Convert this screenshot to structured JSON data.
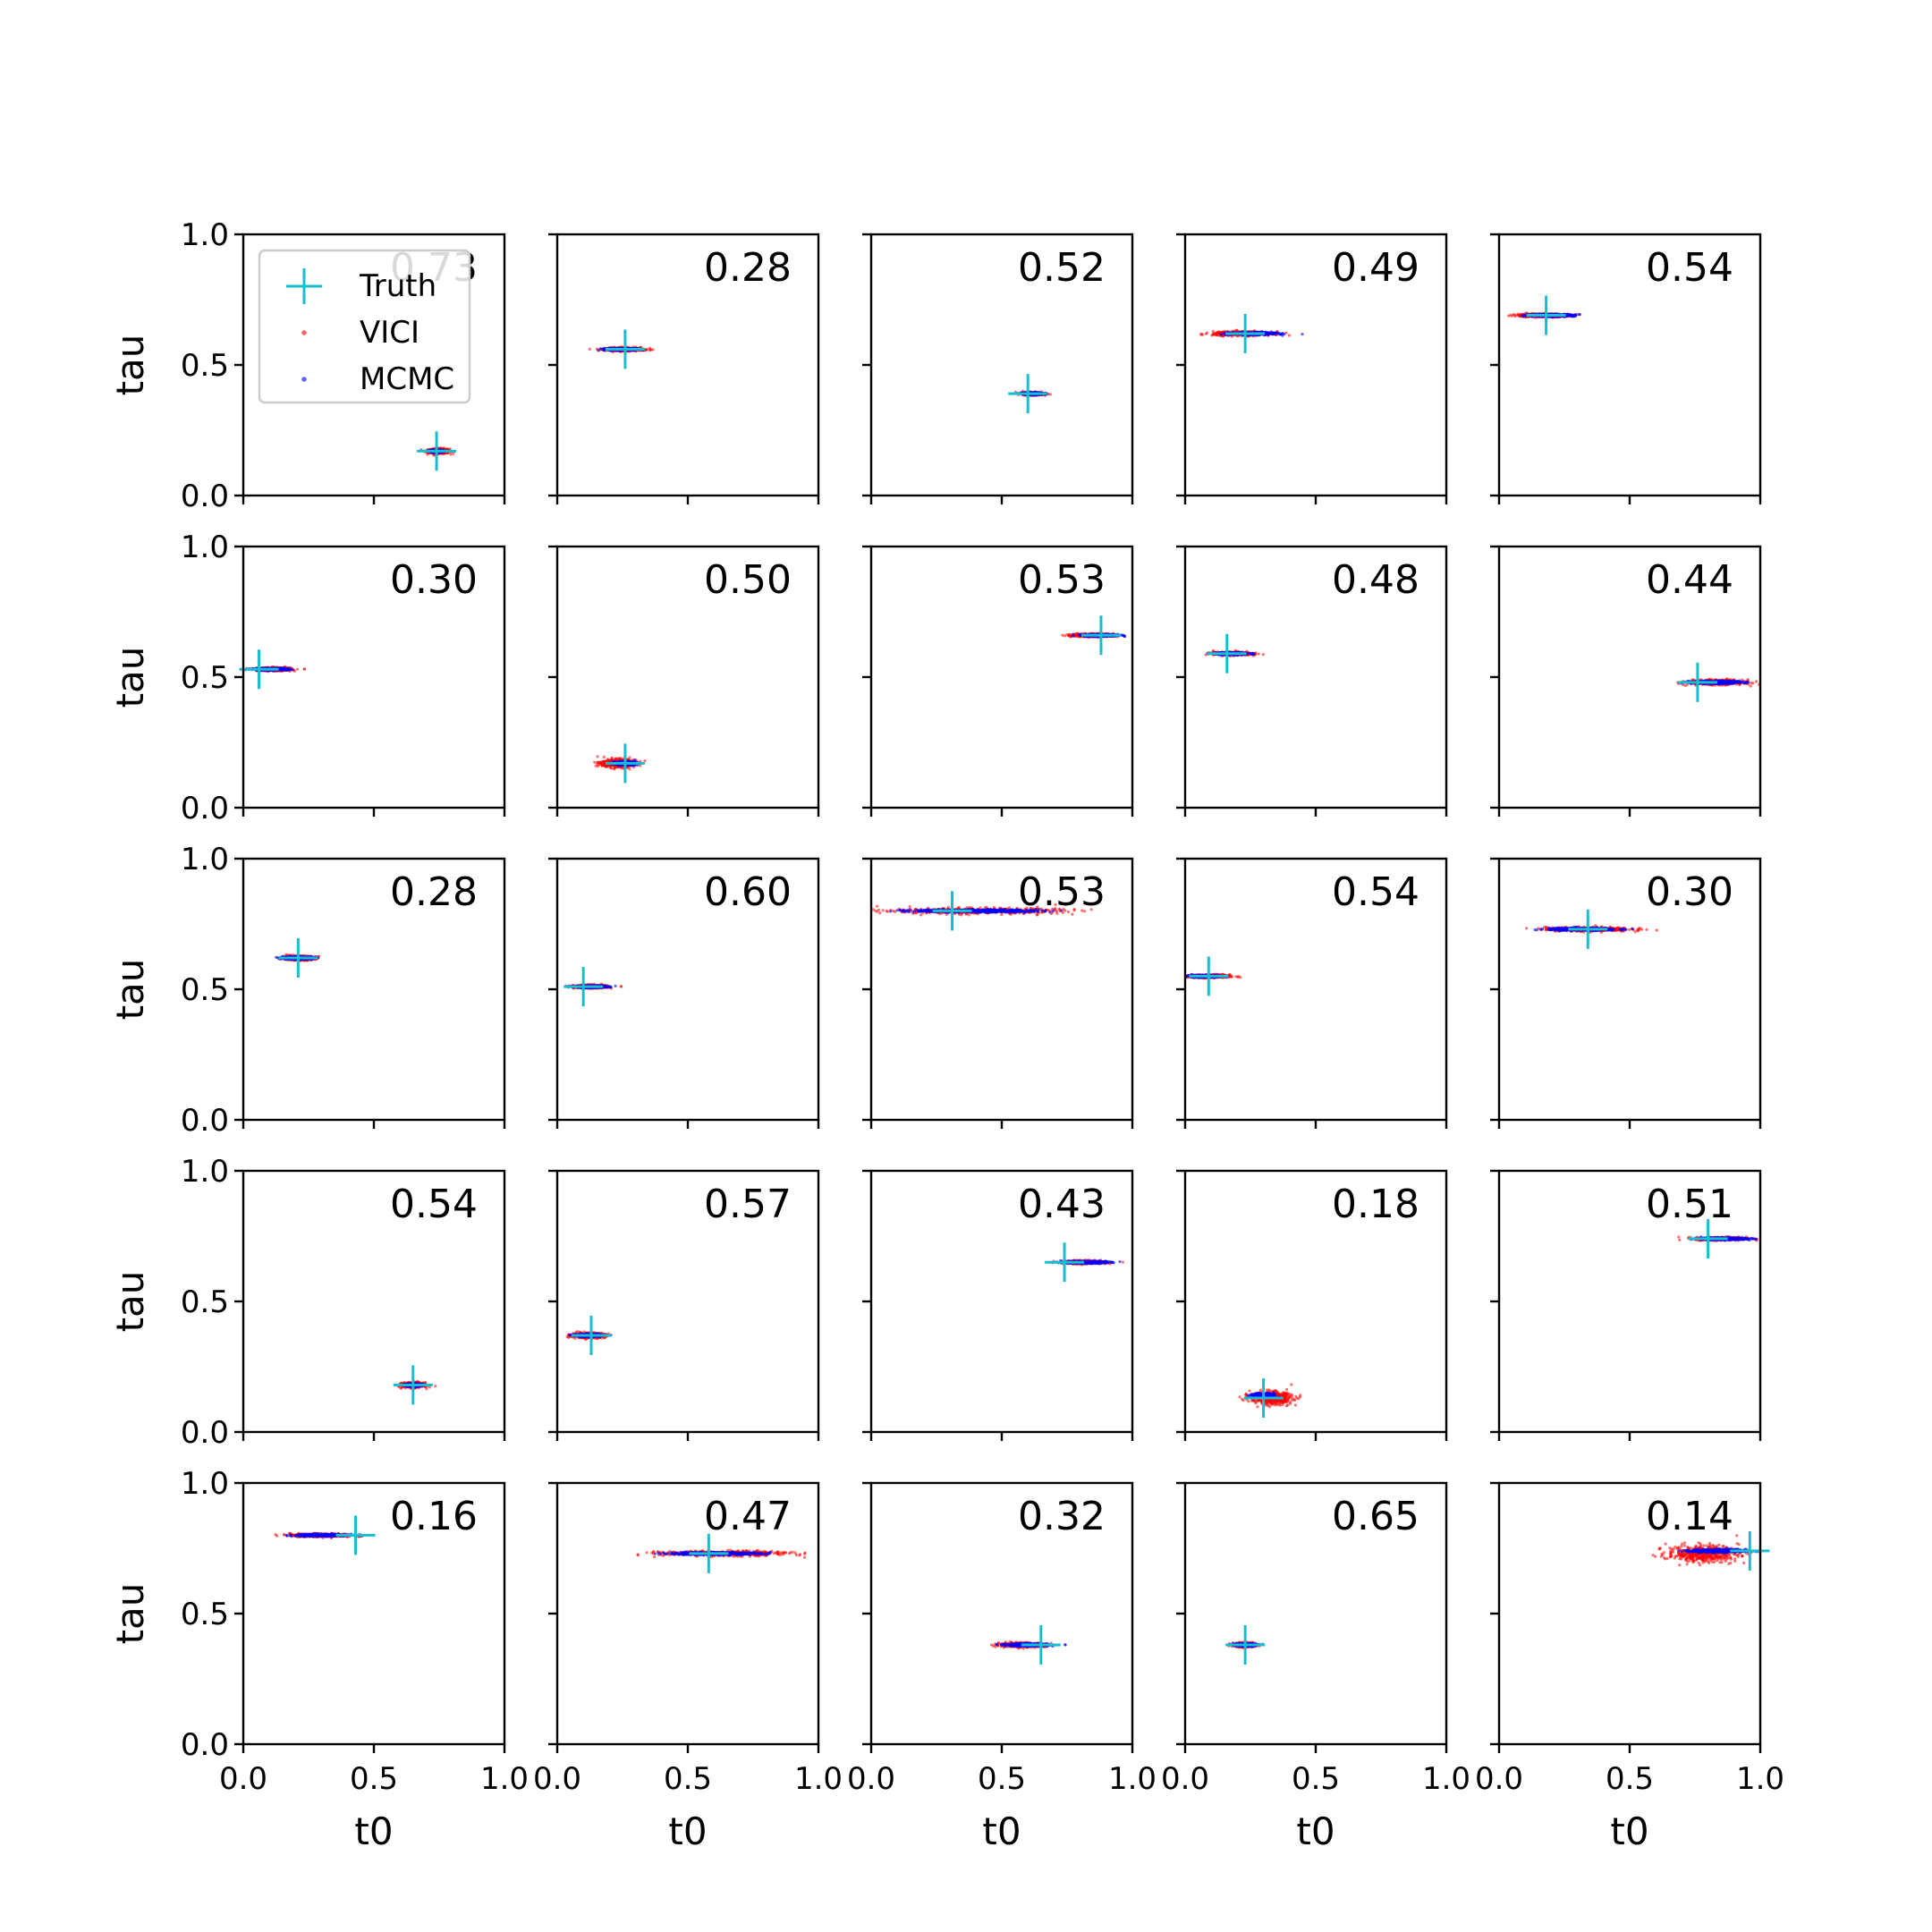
{
  "chart_data": {
    "type": "scatter",
    "layout": {
      "rows": 5,
      "cols": 5
    },
    "xlabel": "t0",
    "ylabel": "tau",
    "xlim": [
      0,
      1
    ],
    "ylim": [
      0,
      1
    ],
    "x_ticks": [
      "0.0",
      "0.5",
      "1.0"
    ],
    "y_ticks": [
      "0.0",
      "0.5",
      "1.0"
    ],
    "x_tick_values": [
      0,
      0.5,
      1
    ],
    "y_tick_values": [
      0,
      0.5,
      1
    ],
    "grid": false,
    "legend": {
      "placement": "upper-left",
      "panel": 0,
      "entries": [
        {
          "label": "Truth",
          "marker": "plus",
          "color": "#17becf"
        },
        {
          "label": "VICI",
          "marker": "dot",
          "color": "#ff0000"
        },
        {
          "label": "MCMC",
          "marker": "dot",
          "color": "#0000ff"
        }
      ]
    },
    "colors": {
      "truth": "#17becf",
      "vici": "#ff0000",
      "mcmc": "#0000ff"
    },
    "panels": [
      {
        "annotation": "0.73",
        "truth": [
          0.74,
          0.17
        ],
        "vici": {
          "center": [
            0.75,
            0.17
          ],
          "spread": [
            0.05,
            0.012
          ]
        },
        "mcmc": {
          "center": [
            0.74,
            0.17
          ],
          "spread": [
            0.03,
            0.006
          ]
        }
      },
      {
        "annotation": "0.28",
        "truth": [
          0.26,
          0.56
        ],
        "vici": {
          "center": [
            0.26,
            0.56
          ],
          "spread": [
            0.09,
            0.008
          ]
        },
        "mcmc": {
          "center": [
            0.25,
            0.56
          ],
          "spread": [
            0.07,
            0.005
          ]
        }
      },
      {
        "annotation": "0.52",
        "truth": [
          0.6,
          0.39
        ],
        "vici": {
          "center": [
            0.62,
            0.39
          ],
          "spread": [
            0.05,
            0.007
          ]
        },
        "mcmc": {
          "center": [
            0.62,
            0.39
          ],
          "spread": [
            0.05,
            0.005
          ]
        }
      },
      {
        "annotation": "0.49",
        "truth": [
          0.23,
          0.62
        ],
        "vici": {
          "center": [
            0.22,
            0.62
          ],
          "spread": [
            0.14,
            0.01
          ]
        },
        "mcmc": {
          "center": [
            0.26,
            0.62
          ],
          "spread": [
            0.11,
            0.006
          ]
        }
      },
      {
        "annotation": "0.54",
        "truth": [
          0.18,
          0.69
        ],
        "vici": {
          "center": [
            0.17,
            0.69
          ],
          "spread": [
            0.13,
            0.008
          ]
        },
        "mcmc": {
          "center": [
            0.2,
            0.69
          ],
          "spread": [
            0.11,
            0.005
          ]
        }
      },
      {
        "annotation": "0.30",
        "truth": [
          0.06,
          0.53
        ],
        "vici": {
          "center": [
            0.12,
            0.53
          ],
          "spread": [
            0.08,
            0.008
          ]
        },
        "mcmc": {
          "center": [
            0.11,
            0.53
          ],
          "spread": [
            0.08,
            0.005
          ]
        }
      },
      {
        "annotation": "0.50",
        "truth": [
          0.26,
          0.17
        ],
        "vici": {
          "center": [
            0.23,
            0.17
          ],
          "spread": [
            0.08,
            0.02
          ]
        },
        "mcmc": {
          "center": [
            0.26,
            0.17
          ],
          "spread": [
            0.05,
            0.008
          ]
        }
      },
      {
        "annotation": "0.53",
        "truth": [
          0.88,
          0.66
        ],
        "vici": {
          "center": [
            0.85,
            0.66
          ],
          "spread": [
            0.1,
            0.008
          ]
        },
        "mcmc": {
          "center": [
            0.88,
            0.66
          ],
          "spread": [
            0.08,
            0.005
          ]
        }
      },
      {
        "annotation": "0.48",
        "truth": [
          0.16,
          0.59
        ],
        "vici": {
          "center": [
            0.18,
            0.59
          ],
          "spread": [
            0.09,
            0.008
          ]
        },
        "mcmc": {
          "center": [
            0.18,
            0.59
          ],
          "spread": [
            0.08,
            0.005
          ]
        }
      },
      {
        "annotation": "0.44",
        "truth": [
          0.76,
          0.48
        ],
        "vici": {
          "center": [
            0.83,
            0.48
          ],
          "spread": [
            0.13,
            0.012
          ]
        },
        "mcmc": {
          "center": [
            0.83,
            0.48
          ],
          "spread": [
            0.12,
            0.006
          ]
        }
      },
      {
        "annotation": "0.28",
        "truth": [
          0.21,
          0.62
        ],
        "vici": {
          "center": [
            0.21,
            0.62
          ],
          "spread": [
            0.08,
            0.01
          ]
        },
        "mcmc": {
          "center": [
            0.21,
            0.62
          ],
          "spread": [
            0.07,
            0.006
          ]
        }
      },
      {
        "annotation": "0.60",
        "truth": [
          0.1,
          0.51
        ],
        "vici": {
          "center": [
            0.13,
            0.51
          ],
          "spread": [
            0.08,
            0.008
          ]
        },
        "mcmc": {
          "center": [
            0.13,
            0.51
          ],
          "spread": [
            0.07,
            0.005
          ]
        }
      },
      {
        "annotation": "0.53",
        "truth": [
          0.31,
          0.8
        ],
        "vici": {
          "center": [
            0.4,
            0.8
          ],
          "spread": [
            0.4,
            0.014
          ]
        },
        "mcmc": {
          "center": [
            0.4,
            0.8
          ],
          "spread": [
            0.3,
            0.007
          ]
        }
      },
      {
        "annotation": "0.54",
        "truth": [
          0.09,
          0.55
        ],
        "vici": {
          "center": [
            0.09,
            0.55
          ],
          "spread": [
            0.1,
            0.008
          ]
        },
        "mcmc": {
          "center": [
            0.08,
            0.55
          ],
          "spread": [
            0.07,
            0.005
          ]
        }
      },
      {
        "annotation": "0.30",
        "truth": [
          0.34,
          0.73
        ],
        "vici": {
          "center": [
            0.34,
            0.73
          ],
          "spread": [
            0.2,
            0.01
          ]
        },
        "mcmc": {
          "center": [
            0.32,
            0.73
          ],
          "spread": [
            0.16,
            0.006
          ]
        }
      },
      {
        "annotation": "0.54",
        "truth": [
          0.65,
          0.18
        ],
        "vici": {
          "center": [
            0.65,
            0.18
          ],
          "spread": [
            0.05,
            0.012
          ]
        },
        "mcmc": {
          "center": [
            0.65,
            0.18
          ],
          "spread": [
            0.04,
            0.006
          ]
        }
      },
      {
        "annotation": "0.57",
        "truth": [
          0.13,
          0.37
        ],
        "vici": {
          "center": [
            0.12,
            0.37
          ],
          "spread": [
            0.08,
            0.012
          ]
        },
        "mcmc": {
          "center": [
            0.12,
            0.37
          ],
          "spread": [
            0.06,
            0.006
          ]
        }
      },
      {
        "annotation": "0.43",
        "truth": [
          0.74,
          0.65
        ],
        "vici": {
          "center": [
            0.82,
            0.65
          ],
          "spread": [
            0.1,
            0.008
          ]
        },
        "mcmc": {
          "center": [
            0.82,
            0.65
          ],
          "spread": [
            0.1,
            0.005
          ]
        }
      },
      {
        "annotation": "0.18",
        "truth": [
          0.3,
          0.13
        ],
        "vici": {
          "center": [
            0.33,
            0.13
          ],
          "spread": [
            0.1,
            0.03
          ]
        },
        "mcmc": {
          "center": [
            0.3,
            0.14
          ],
          "spread": [
            0.05,
            0.01
          ]
        }
      },
      {
        "annotation": "0.51",
        "truth": [
          0.8,
          0.74
        ],
        "vici": {
          "center": [
            0.85,
            0.74
          ],
          "spread": [
            0.12,
            0.008
          ]
        },
        "mcmc": {
          "center": [
            0.86,
            0.74
          ],
          "spread": [
            0.11,
            0.005
          ]
        }
      },
      {
        "annotation": "0.16",
        "truth": [
          0.43,
          0.8
        ],
        "vici": {
          "center": [
            0.3,
            0.8
          ],
          "spread": [
            0.15,
            0.008
          ]
        },
        "mcmc": {
          "center": [
            0.3,
            0.8
          ],
          "spread": [
            0.12,
            0.005
          ]
        }
      },
      {
        "annotation": "0.47",
        "truth": [
          0.58,
          0.73
        ],
        "vici": {
          "center": [
            0.64,
            0.73
          ],
          "spread": [
            0.3,
            0.012
          ]
        },
        "mcmc": {
          "center": [
            0.6,
            0.73
          ],
          "spread": [
            0.22,
            0.006
          ]
        }
      },
      {
        "annotation": "0.32",
        "truth": [
          0.65,
          0.38
        ],
        "vici": {
          "center": [
            0.58,
            0.38
          ],
          "spread": [
            0.11,
            0.01
          ]
        },
        "mcmc": {
          "center": [
            0.6,
            0.38
          ],
          "spread": [
            0.1,
            0.006
          ]
        }
      },
      {
        "annotation": "0.65",
        "truth": [
          0.23,
          0.38
        ],
        "vici": {
          "center": [
            0.23,
            0.38
          ],
          "spread": [
            0.05,
            0.01
          ]
        },
        "mcmc": {
          "center": [
            0.23,
            0.38
          ],
          "spread": [
            0.05,
            0.006
          ]
        }
      },
      {
        "annotation": "0.14",
        "truth": [
          0.96,
          0.74
        ],
        "vici": {
          "center": [
            0.78,
            0.73
          ],
          "spread": [
            0.17,
            0.04
          ]
        },
        "mcmc": {
          "center": [
            0.84,
            0.74
          ],
          "spread": [
            0.13,
            0.008
          ]
        }
      }
    ]
  }
}
